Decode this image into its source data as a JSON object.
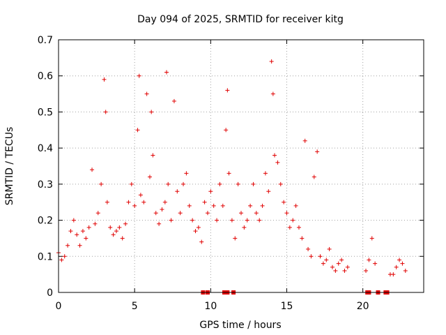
{
  "chart_data": {
    "type": "scatter",
    "title": "Day 094 of 2025, SRMTID for receiver kitg",
    "xlabel": "GPS time / hours",
    "ylabel": "SRMTID / TECUs",
    "xlim": [
      0,
      24
    ],
    "ylim": [
      0,
      0.7
    ],
    "xticks": [
      "0",
      "5",
      "10",
      "15",
      "20"
    ],
    "yticks": [
      "0",
      "0.1",
      "0.2",
      "0.3",
      "0.4",
      "0.5",
      "0.6",
      "0.7"
    ],
    "grid": true,
    "marker": "+",
    "color": "#e00000",
    "series": [
      {
        "name": "SRMTID",
        "x": [
          0.0,
          0.2,
          0.4,
          0.6,
          0.8,
          1.0,
          1.2,
          1.4,
          1.6,
          1.8,
          2.0,
          2.2,
          2.4,
          2.6,
          2.8,
          3.0,
          3.1,
          3.2,
          3.4,
          3.6,
          3.8,
          4.0,
          4.2,
          4.4,
          4.6,
          4.8,
          5.0,
          5.2,
          5.3,
          5.4,
          5.6,
          5.8,
          6.0,
          6.1,
          6.2,
          6.4,
          6.6,
          6.8,
          7.0,
          7.1,
          7.2,
          7.4,
          7.6,
          7.8,
          8.0,
          8.2,
          8.4,
          8.6,
          8.8,
          9.0,
          9.2,
          9.4,
          9.6,
          9.8,
          10.0,
          10.2,
          10.4,
          10.6,
          10.8,
          11.0,
          11.1,
          11.2,
          11.4,
          11.6,
          11.8,
          12.0,
          12.2,
          12.4,
          12.6,
          12.8,
          13.0,
          13.2,
          13.4,
          13.6,
          13.8,
          14.0,
          14.1,
          14.2,
          14.4,
          14.6,
          14.8,
          15.0,
          15.2,
          15.4,
          15.6,
          15.8,
          16.0,
          16.2,
          16.4,
          16.6,
          16.8,
          17.0,
          17.2,
          17.4,
          17.6,
          17.8,
          18.0,
          18.2,
          18.4,
          18.6,
          18.8,
          19.0,
          20.2,
          20.4,
          20.6,
          20.8,
          21.8,
          22.0,
          22.2,
          22.4,
          22.6,
          22.8
        ],
        "y": [
          0.11,
          0.09,
          0.1,
          0.13,
          0.17,
          0.2,
          0.16,
          0.13,
          0.17,
          0.15,
          0.18,
          0.34,
          0.19,
          0.22,
          0.3,
          0.59,
          0.5,
          0.25,
          0.18,
          0.16,
          0.17,
          0.18,
          0.15,
          0.19,
          0.25,
          0.3,
          0.24,
          0.45,
          0.6,
          0.27,
          0.25,
          0.55,
          0.32,
          0.5,
          0.38,
          0.22,
          0.19,
          0.23,
          0.25,
          0.61,
          0.3,
          0.2,
          0.53,
          0.28,
          0.22,
          0.3,
          0.33,
          0.24,
          0.2,
          0.17,
          0.18,
          0.14,
          0.25,
          0.22,
          0.28,
          0.24,
          0.2,
          0.3,
          0.24,
          0.45,
          0.56,
          0.33,
          0.2,
          0.15,
          0.3,
          0.22,
          0.18,
          0.2,
          0.24,
          0.3,
          0.22,
          0.2,
          0.24,
          0.33,
          0.28,
          0.64,
          0.55,
          0.38,
          0.36,
          0.3,
          0.25,
          0.22,
          0.18,
          0.2,
          0.24,
          0.18,
          0.15,
          0.42,
          0.12,
          0.1,
          0.32,
          0.39,
          0.1,
          0.08,
          0.09,
          0.12,
          0.07,
          0.06,
          0.08,
          0.09,
          0.06,
          0.07,
          0.06,
          0.09,
          0.15,
          0.08,
          0.05,
          0.05,
          0.07,
          0.09,
          0.08,
          0.06
        ]
      },
      {
        "name": "gaps",
        "x": [
          9.5,
          9.8,
          10.9,
          11.0,
          11.1,
          11.5,
          20.3,
          20.4,
          21.0,
          21.5,
          21.6
        ],
        "y": [
          0,
          0,
          0,
          0,
          0,
          0,
          0,
          0,
          0,
          0,
          0
        ]
      }
    ]
  }
}
